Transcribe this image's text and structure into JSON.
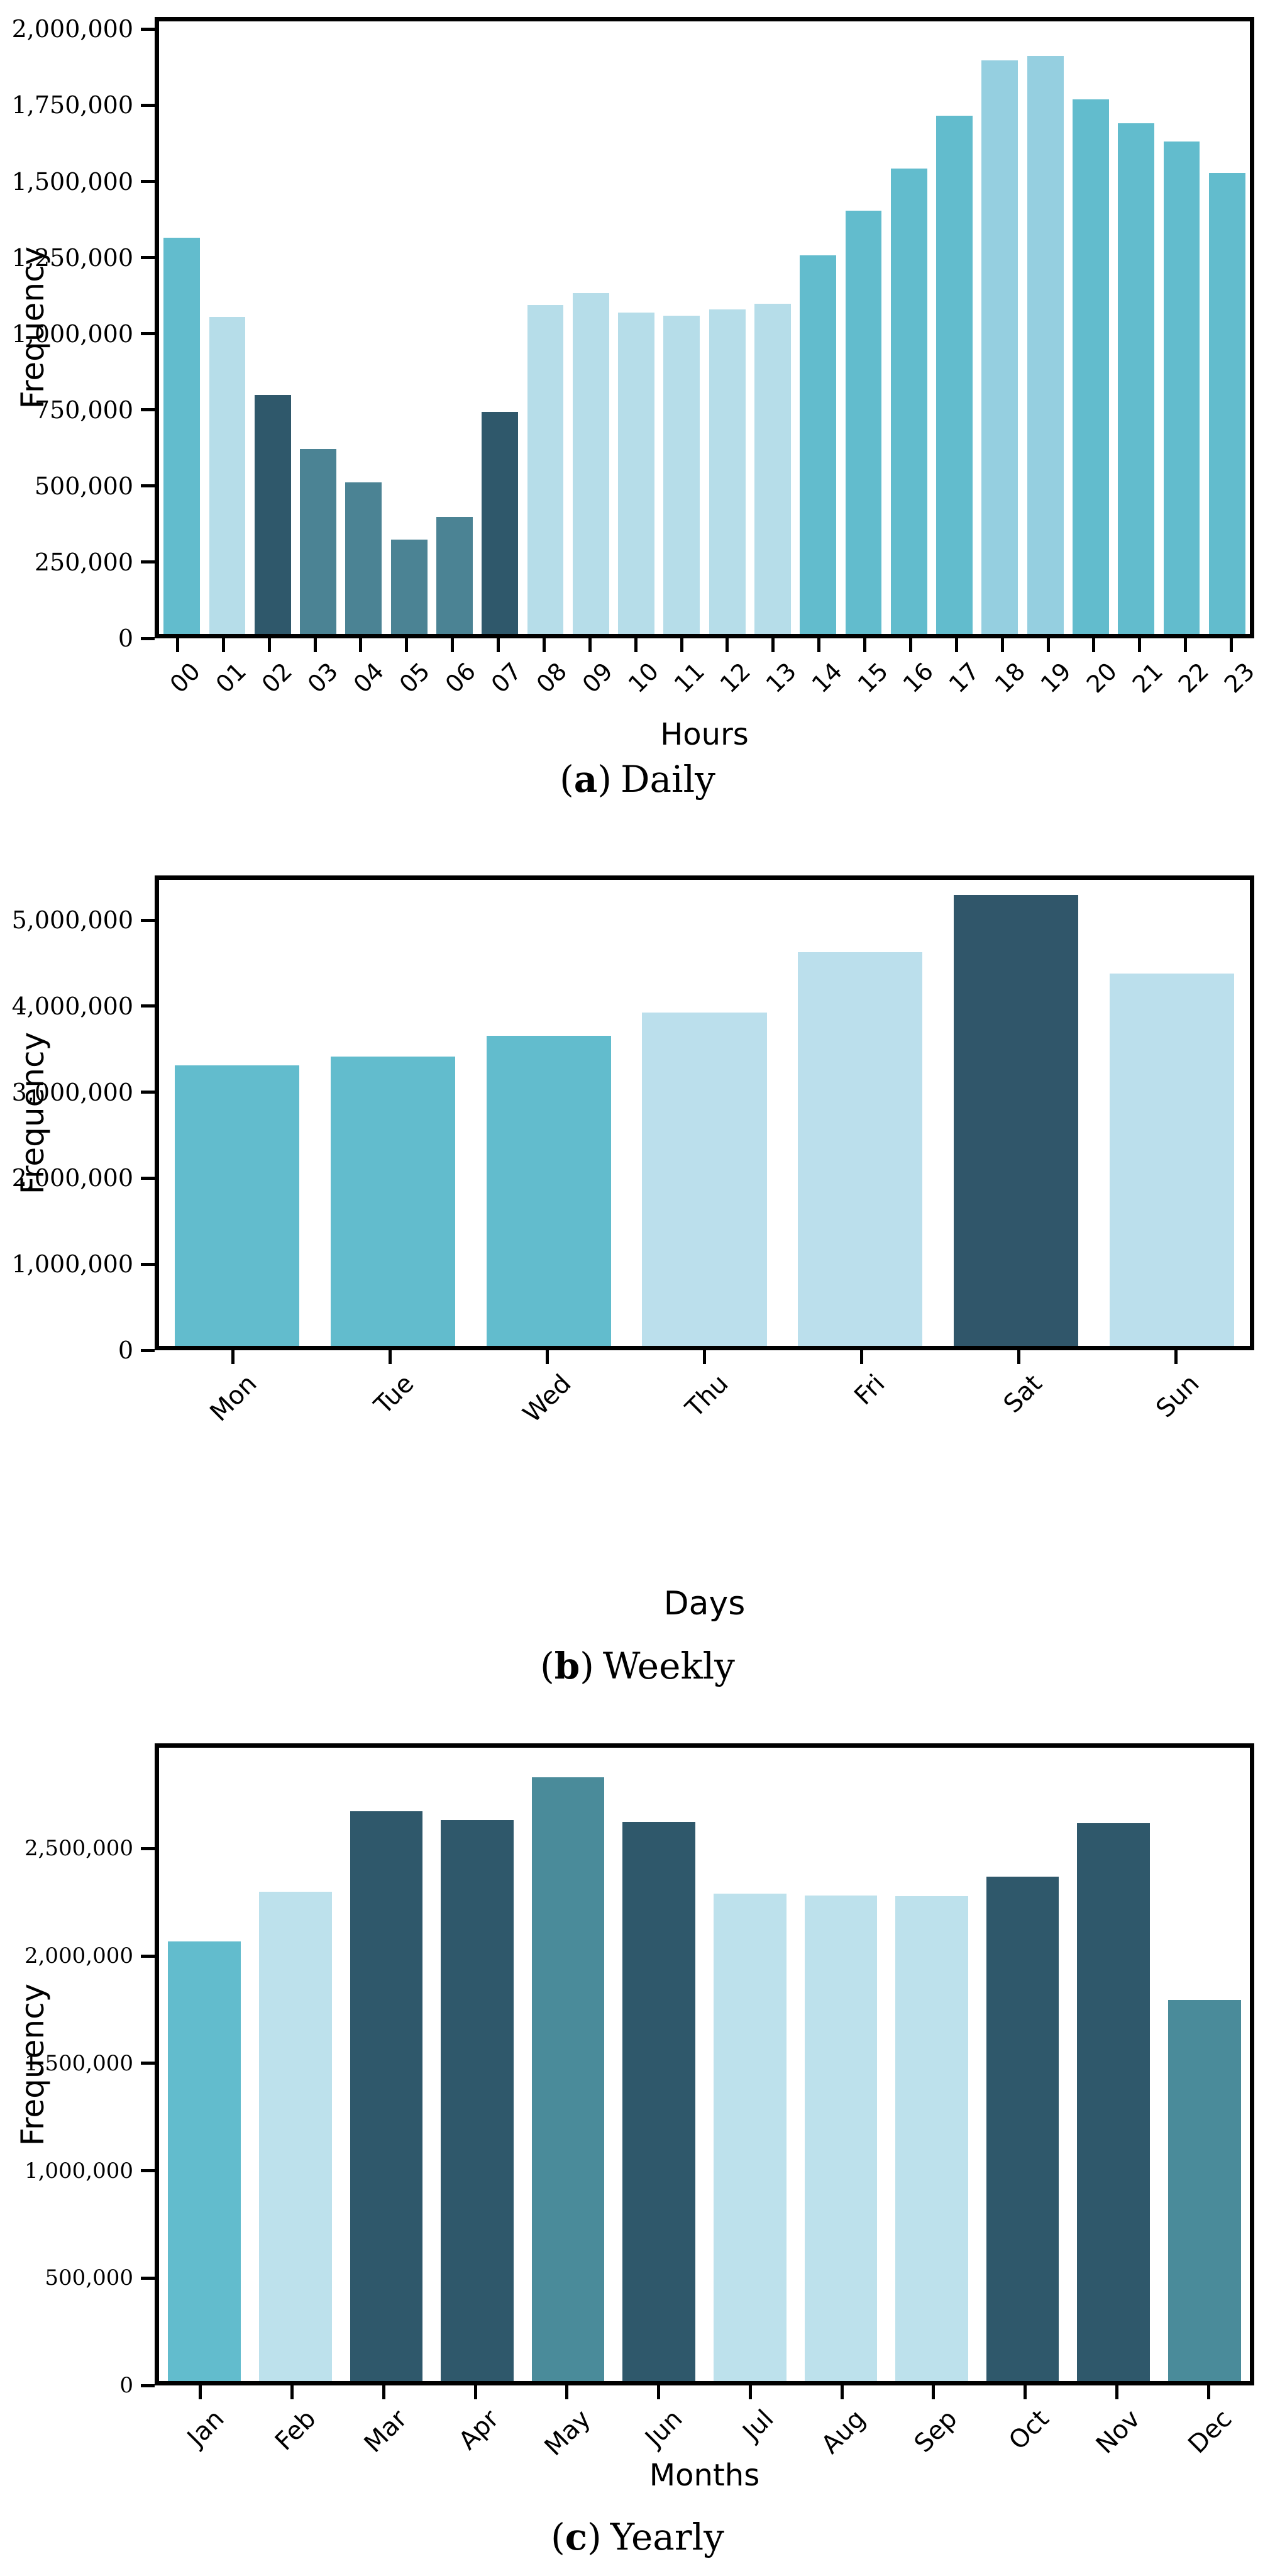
{
  "figure": {
    "background": "#ffffff",
    "axis_color": "#000000"
  },
  "palette": {
    "medium_teal": "#62bccd",
    "light_blue": "#b6dde9",
    "pale_medium_blue": "#95cfe0",
    "medium_dark_teal": "#4b8394",
    "medium_dark_teal_2": "#4a8b9a",
    "dark_slate_teal": "#2f586b"
  },
  "chart_data": [
    {
      "type": "bar",
      "caption": {
        "open": "(",
        "letter": "a",
        "close": ")",
        "text": "Daily"
      },
      "xlabel": "Hours",
      "ylabel": "Frequency",
      "ylim": [
        0,
        2040000
      ],
      "grid": false,
      "categories": [
        "00",
        "01",
        "02",
        "03",
        "04",
        "05",
        "06",
        "07",
        "08",
        "09",
        "10",
        "11",
        "12",
        "13",
        "14",
        "15",
        "16",
        "17",
        "18",
        "19",
        "20",
        "21",
        "22",
        "23"
      ],
      "values": [
        1320000,
        1055000,
        795000,
        615000,
        505000,
        315000,
        390000,
        740000,
        1095000,
        1135000,
        1070000,
        1060000,
        1080000,
        1100000,
        1260000,
        1410000,
        1550000,
        1725000,
        1910000,
        1925000,
        1780000,
        1700000,
        1640000,
        1535000
      ],
      "colors": [
        "#62bccd",
        "#b6dde9",
        "#2f586b",
        "#4b8394",
        "#4b8394",
        "#4b8394",
        "#4b8394",
        "#2f586b",
        "#b6dde9",
        "#b6dde9",
        "#b6dde9",
        "#b6dde9",
        "#b6dde9",
        "#b6dde9",
        "#62bccd",
        "#62bccd",
        "#62bccd",
        "#62bccd",
        "#95cfe0",
        "#95cfe0",
        "#62bccd",
        "#62bccd",
        "#62bccd",
        "#62bccd"
      ],
      "yticks": [
        {
          "value": 0,
          "label": "0"
        },
        {
          "value": 250000,
          "label": "250,000"
        },
        {
          "value": 500000,
          "label": "500,000"
        },
        {
          "value": 750000,
          "label": "750,000"
        },
        {
          "value": 1000000,
          "label": "1,000,000"
        },
        {
          "value": 1250000,
          "label": "1,250,000"
        },
        {
          "value": 1500000,
          "label": "1,500,000"
        },
        {
          "value": 1750000,
          "label": "1,750,000"
        },
        {
          "value": 2000000,
          "label": "2,000,000"
        }
      ]
    },
    {
      "type": "bar",
      "caption": {
        "open": "(",
        "letter": "b",
        "close": ")",
        "text": "Weekly"
      },
      "xlabel": "Days",
      "ylabel": "Frequency",
      "ylim": [
        0,
        5520000
      ],
      "grid": false,
      "categories": [
        "Mon",
        "Tue",
        "Wed",
        "Thu",
        "Fri",
        "Sat",
        "Sun"
      ],
      "values": [
        3320000,
        3430000,
        3670000,
        3950000,
        4660000,
        5340000,
        4410000
      ],
      "colors": [
        "#62bccd",
        "#62bccd",
        "#62bccd",
        "#bbdfec",
        "#bbdfec",
        "#30566a",
        "#bbdfec"
      ],
      "yticks": [
        {
          "value": 0,
          "label": "0"
        },
        {
          "value": 1000000,
          "label": "1,000,000"
        },
        {
          "value": 2000000,
          "label": "2,000,000"
        },
        {
          "value": 3000000,
          "label": "3,000,000"
        },
        {
          "value": 4000000,
          "label": "4,000,000"
        },
        {
          "value": 5000000,
          "label": "5,000,000"
        }
      ]
    },
    {
      "type": "bar",
      "caption": {
        "open": "(",
        "letter": "c",
        "close": ")",
        "text": "Yearly"
      },
      "xlabel": "Months",
      "ylabel": "Frequency",
      "ylim": [
        0,
        2990000
      ],
      "grid": false,
      "categories": [
        "Jan",
        "Feb",
        "Mar",
        "Apr",
        "May",
        "Jun",
        "Jul",
        "Aug",
        "Sep",
        "Oct",
        "Nov",
        "Dec"
      ],
      "values": [
        2075000,
        2310000,
        2690000,
        2650000,
        2850000,
        2640000,
        2300000,
        2292000,
        2290000,
        2380000,
        2635000,
        1800000
      ],
      "colors": [
        "#62bccd",
        "#bde1ec",
        "#2f586b",
        "#2f586b",
        "#4a8b9a",
        "#2f586b",
        "#bde1ec",
        "#bde1ec",
        "#bde1ec",
        "#2f586b",
        "#2f586b",
        "#4a8b9a"
      ],
      "yticks": [
        {
          "value": 0,
          "label": "0"
        },
        {
          "value": 500000,
          "label": "500,000"
        },
        {
          "value": 1000000,
          "label": "1,000,000"
        },
        {
          "value": 1500000,
          "label": "1,500,000"
        },
        {
          "value": 2000000,
          "label": "2,000,000"
        },
        {
          "value": 2500000,
          "label": "2,500,000"
        }
      ]
    }
  ]
}
